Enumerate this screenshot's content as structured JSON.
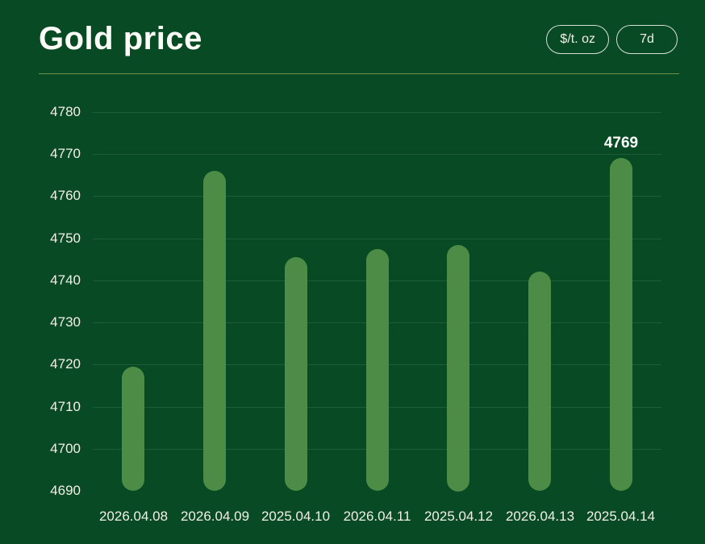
{
  "header": {
    "title": "Gold price",
    "unit_button": "$/t. oz",
    "period_button": "7d"
  },
  "colors": {
    "background": "#084a24",
    "bar": "#4d8c46",
    "grid": "rgba(240,255,240,0.10)",
    "divider": "#7da050",
    "text": "#f2efe6",
    "value_label": "#ffffff"
  },
  "chart_data": {
    "type": "bar",
    "title": "Gold price",
    "unit": "$/t. oz",
    "period": "7d",
    "categories": [
      "2026.04.08",
      "2026.04.09",
      "2025.04.10",
      "2026.04.11",
      "2025.04.12",
      "2026.04.13",
      "2025.04.14"
    ],
    "values": [
      4719.5,
      4766,
      4745.5,
      4747.5,
      4748.5,
      4742,
      4769
    ],
    "y_ticks": [
      4780,
      4770,
      4760,
      4750,
      4740,
      4730,
      4720,
      4710,
      4700,
      4690
    ],
    "ylim": [
      4690,
      4780
    ],
    "xlabel": "",
    "ylabel": "",
    "grid": true,
    "legend": false,
    "highlight": {
      "index": 6,
      "label": "4769"
    }
  }
}
